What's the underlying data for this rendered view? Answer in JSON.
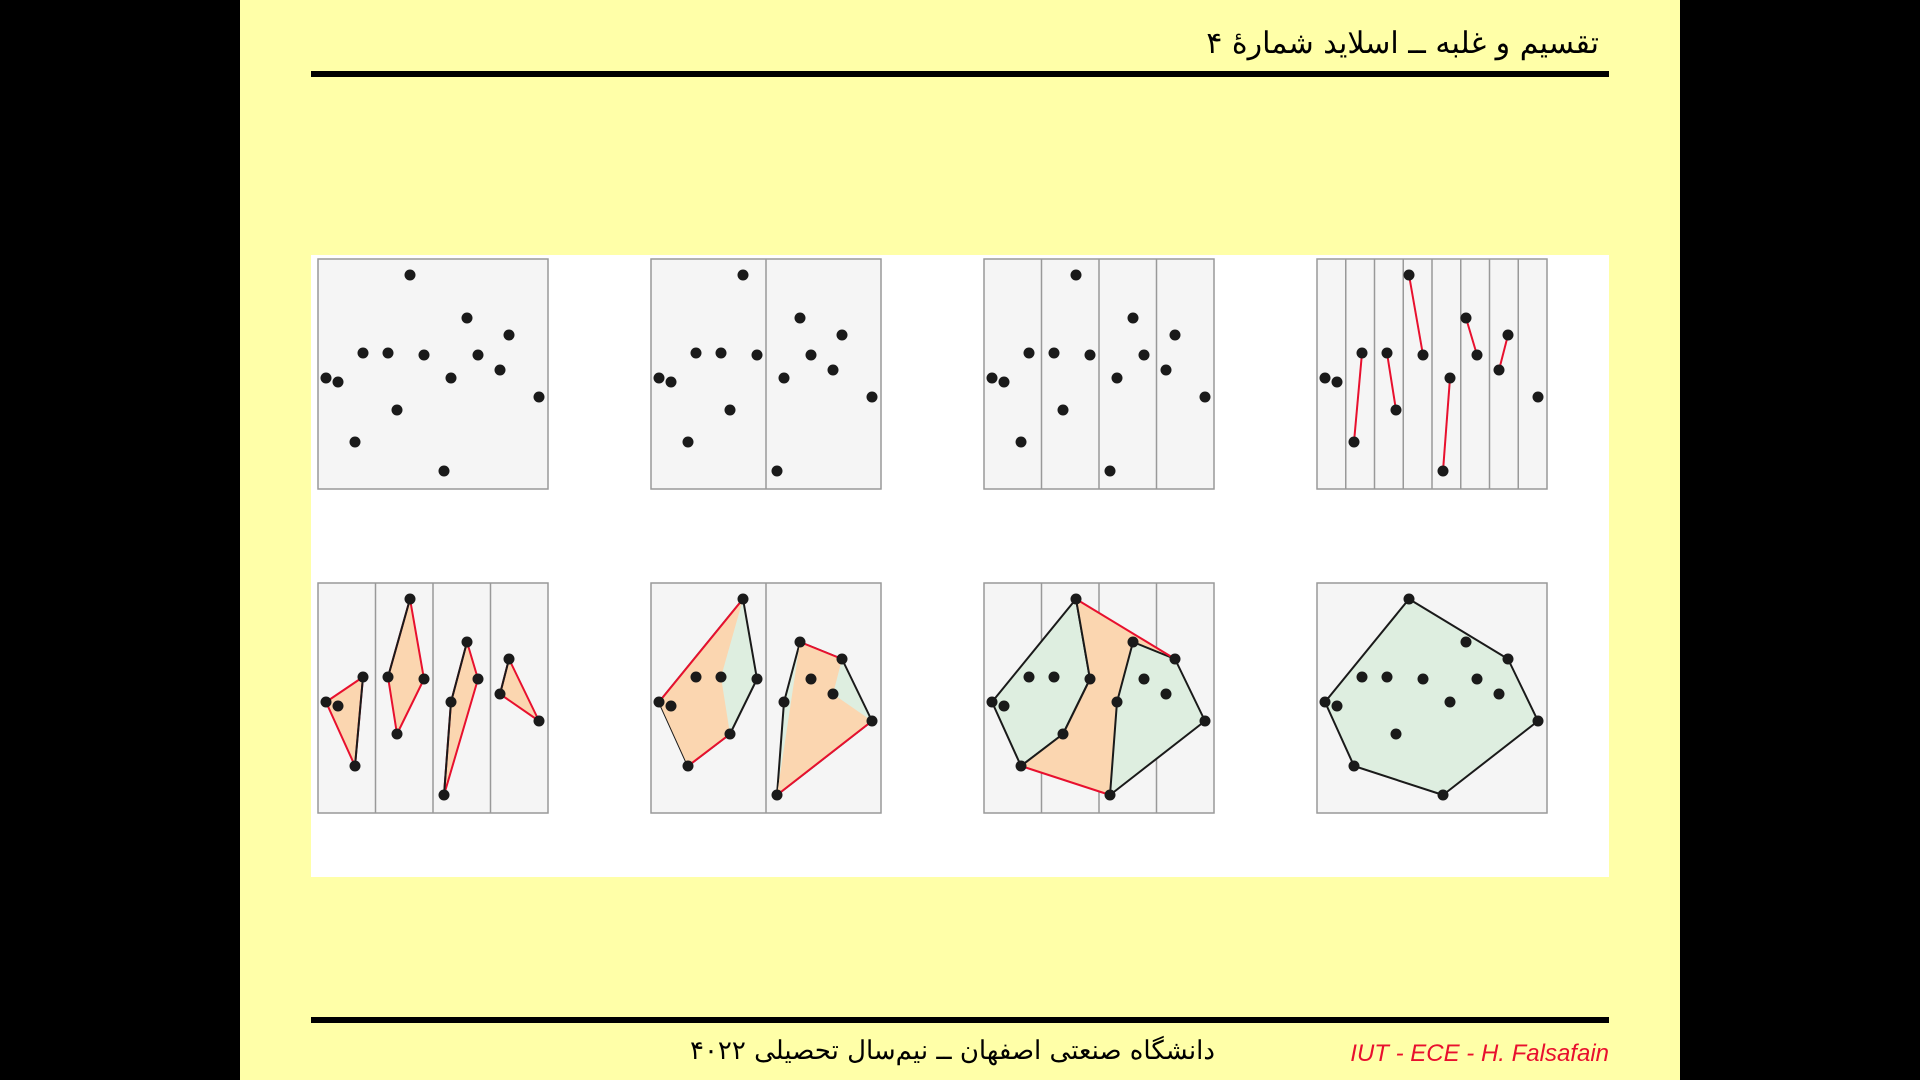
{
  "header": {
    "title": "تقسیم و غلبه ــ اسلاید شمارۀ ۴"
  },
  "footer": {
    "text": "دانشگاه صنعتی اصفهان ــ نیم‌سال تحصیلی ۴۰۲۲",
    "credit": "IUT - ECE - H. Falsafain"
  },
  "colors": {
    "slide_background": "#ffffa8",
    "panel_background": "#f5f5f5",
    "point": "#1a1a1a",
    "merge_edge": "#e8102e",
    "hull_edge": "#1a1a1a",
    "tri_fill_green": "#deeee0",
    "tri_fill_orange": "#fbd6b0"
  },
  "figure": {
    "description_icon": "divide-and-conquer-convex-hull-illustration",
    "rows": 2,
    "cols": 4,
    "point_count": 16
  }
}
